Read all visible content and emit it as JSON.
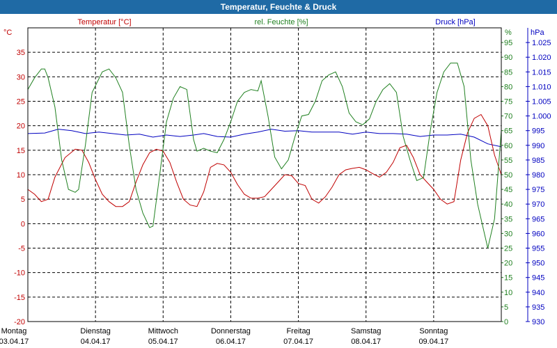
{
  "window": {
    "title": "Temperatur, Feuchte & Druck"
  },
  "colors": {
    "temperature": "#c00000",
    "humidity": "#208020",
    "pressure": "#0000c0",
    "grid": "#000000",
    "titlebar": "#1f6aa5"
  },
  "chart_data": {
    "type": "line",
    "title": "Temperatur, Feuchte & Druck",
    "grid": true,
    "x_labels": [
      {
        "day": "Montag",
        "date": "03.04.17"
      },
      {
        "day": "Dienstag",
        "date": "04.04.17"
      },
      {
        "day": "Mittwoch",
        "date": "05.04.17"
      },
      {
        "day": "Donnerstag",
        "date": "06.04.17"
      },
      {
        "day": "Freitag",
        "date": "07.04.17"
      },
      {
        "day": "Samstag",
        "date": "08.04.17"
      },
      {
        "day": "Sonntag",
        "date": "09.04.17"
      }
    ],
    "xlim": [
      0,
      7
    ],
    "axes": {
      "temperature": {
        "label": "Temperatur [°C]",
        "unit": "°C",
        "ylim": [
          -20,
          40
        ],
        "ticks": [
          "-20",
          "-15",
          "-10",
          "-5",
          "0",
          "5",
          "10",
          "15",
          "20",
          "25",
          "30",
          "35"
        ]
      },
      "humidity": {
        "label": "rel. Feuchte [%]",
        "unit": "%",
        "ylim": [
          0,
          100
        ],
        "ticks": [
          "0",
          "5",
          "10",
          "15",
          "20",
          "25",
          "30",
          "35",
          "40",
          "45",
          "50",
          "55",
          "60",
          "65",
          "70",
          "75",
          "80",
          "85",
          "90",
          "95"
        ]
      },
      "pressure": {
        "label": "Druck [hPa]",
        "unit": "hPa",
        "ylim": [
          930,
          1030
        ],
        "ticks": [
          "930",
          "935",
          "940",
          "945",
          "950",
          "955",
          "960",
          "965",
          "970",
          "975",
          "980",
          "985",
          "990",
          "995",
          "1.000",
          "1.005",
          "1.010",
          "1.015",
          "1.020",
          "1.025"
        ]
      }
    },
    "series": [
      {
        "name": "Temperatur [°C]",
        "axis": "temperature",
        "points": [
          [
            0.0,
            7.0
          ],
          [
            0.1,
            6.0
          ],
          [
            0.2,
            4.5
          ],
          [
            0.3,
            5.0
          ],
          [
            0.4,
            9.5
          ],
          [
            0.55,
            13.5
          ],
          [
            0.7,
            15.2
          ],
          [
            0.8,
            15.0
          ],
          [
            0.9,
            12.5
          ],
          [
            1.0,
            9.0
          ],
          [
            1.1,
            6.0
          ],
          [
            1.2,
            4.5
          ],
          [
            1.3,
            3.5
          ],
          [
            1.4,
            3.5
          ],
          [
            1.5,
            4.5
          ],
          [
            1.6,
            8.5
          ],
          [
            1.7,
            12.0
          ],
          [
            1.8,
            14.5
          ],
          [
            1.9,
            15.2
          ],
          [
            2.0,
            14.8
          ],
          [
            2.1,
            12.5
          ],
          [
            2.2,
            8.5
          ],
          [
            2.3,
            5.0
          ],
          [
            2.4,
            3.8
          ],
          [
            2.5,
            3.5
          ],
          [
            2.6,
            6.5
          ],
          [
            2.7,
            11.5
          ],
          [
            2.8,
            12.3
          ],
          [
            2.9,
            12.0
          ],
          [
            3.0,
            10.5
          ],
          [
            3.1,
            8.0
          ],
          [
            3.2,
            6.0
          ],
          [
            3.3,
            5.2
          ],
          [
            3.4,
            5.2
          ],
          [
            3.5,
            5.5
          ],
          [
            3.6,
            7.0
          ],
          [
            3.7,
            8.5
          ],
          [
            3.8,
            10.0
          ],
          [
            3.9,
            9.8
          ],
          [
            4.0,
            8.2
          ],
          [
            4.1,
            7.8
          ],
          [
            4.2,
            5.0
          ],
          [
            4.3,
            4.2
          ],
          [
            4.4,
            5.5
          ],
          [
            4.5,
            7.5
          ],
          [
            4.6,
            10.0
          ],
          [
            4.7,
            11.0
          ],
          [
            4.8,
            11.3
          ],
          [
            4.9,
            11.5
          ],
          [
            5.0,
            11.0
          ],
          [
            5.1,
            10.2
          ],
          [
            5.2,
            9.5
          ],
          [
            5.3,
            10.5
          ],
          [
            5.4,
            12.5
          ],
          [
            5.5,
            15.5
          ],
          [
            5.6,
            16.0
          ],
          [
            5.7,
            13.5
          ],
          [
            5.8,
            10.0
          ],
          [
            5.9,
            8.5
          ],
          [
            6.0,
            7.0
          ],
          [
            6.1,
            5.0
          ],
          [
            6.2,
            4.0
          ],
          [
            6.3,
            4.5
          ],
          [
            6.4,
            13.0
          ],
          [
            6.5,
            18.5
          ],
          [
            6.6,
            21.5
          ],
          [
            6.7,
            22.3
          ],
          [
            6.8,
            20.0
          ],
          [
            6.9,
            14.0
          ],
          [
            7.0,
            10.0
          ]
        ]
      },
      {
        "name": "rel. Feuchte [%]",
        "axis": "humidity",
        "points": [
          [
            0.0,
            79.0
          ],
          [
            0.1,
            83.0
          ],
          [
            0.2,
            86.0
          ],
          [
            0.25,
            86.0
          ],
          [
            0.3,
            83.0
          ],
          [
            0.4,
            73.0
          ],
          [
            0.5,
            55.0
          ],
          [
            0.6,
            45.0
          ],
          [
            0.7,
            44.0
          ],
          [
            0.75,
            45.0
          ],
          [
            0.85,
            60.0
          ],
          [
            0.95,
            78.0
          ],
          [
            1.1,
            85.0
          ],
          [
            1.2,
            86.0
          ],
          [
            1.3,
            83.0
          ],
          [
            1.4,
            78.0
          ],
          [
            1.5,
            60.0
          ],
          [
            1.6,
            45.0
          ],
          [
            1.7,
            37.0
          ],
          [
            1.8,
            32.0
          ],
          [
            1.85,
            32.5
          ],
          [
            1.95,
            50.0
          ],
          [
            2.05,
            68.0
          ],
          [
            2.15,
            76.0
          ],
          [
            2.25,
            80.0
          ],
          [
            2.35,
            79.0
          ],
          [
            2.45,
            62.0
          ],
          [
            2.5,
            58.0
          ],
          [
            2.6,
            59.0
          ],
          [
            2.7,
            58.0
          ],
          [
            2.8,
            57.5
          ],
          [
            2.9,
            62.0
          ],
          [
            3.0,
            68.0
          ],
          [
            3.1,
            75.0
          ],
          [
            3.2,
            78.0
          ],
          [
            3.3,
            79.0
          ],
          [
            3.4,
            78.5
          ],
          [
            3.45,
            82.0
          ],
          [
            3.55,
            70.0
          ],
          [
            3.65,
            56.0
          ],
          [
            3.75,
            52.0
          ],
          [
            3.85,
            55.0
          ],
          [
            3.95,
            63.0
          ],
          [
            4.05,
            70.0
          ],
          [
            4.15,
            70.5
          ],
          [
            4.25,
            75.0
          ],
          [
            4.35,
            82.0
          ],
          [
            4.45,
            84.0
          ],
          [
            4.55,
            85.0
          ],
          [
            4.65,
            80.0
          ],
          [
            4.75,
            71.0
          ],
          [
            4.85,
            68.0
          ],
          [
            4.95,
            67.0
          ],
          [
            5.05,
            69.0
          ],
          [
            5.15,
            75.0
          ],
          [
            5.25,
            79.0
          ],
          [
            5.35,
            81.0
          ],
          [
            5.45,
            78.0
          ],
          [
            5.55,
            63.0
          ],
          [
            5.65,
            55.0
          ],
          [
            5.75,
            48.0
          ],
          [
            5.85,
            49.0
          ],
          [
            5.95,
            65.0
          ],
          [
            6.05,
            78.0
          ],
          [
            6.15,
            85.0
          ],
          [
            6.25,
            88.0
          ],
          [
            6.35,
            88.0
          ],
          [
            6.45,
            80.0
          ],
          [
            6.55,
            55.0
          ],
          [
            6.65,
            40.0
          ],
          [
            6.75,
            30.0
          ],
          [
            6.8,
            25.0
          ],
          [
            6.9,
            35.0
          ],
          [
            7.0,
            65.0
          ]
        ]
      },
      {
        "name": "Druck [hPa]",
        "axis": "pressure",
        "points": [
          [
            0.0,
            994.0
          ],
          [
            0.25,
            994.2
          ],
          [
            0.45,
            995.5
          ],
          [
            0.65,
            995.0
          ],
          [
            0.85,
            994.0
          ],
          [
            1.05,
            994.5
          ],
          [
            1.25,
            994.0
          ],
          [
            1.45,
            993.5
          ],
          [
            1.65,
            993.8
          ],
          [
            1.85,
            992.8
          ],
          [
            2.05,
            993.5
          ],
          [
            2.25,
            993.0
          ],
          [
            2.45,
            993.5
          ],
          [
            2.6,
            994.0
          ],
          [
            2.8,
            993.0
          ],
          [
            3.0,
            992.8
          ],
          [
            3.2,
            993.8
          ],
          [
            3.4,
            994.5
          ],
          [
            3.6,
            995.5
          ],
          [
            3.8,
            994.8
          ],
          [
            4.0,
            995.0
          ],
          [
            4.2,
            994.5
          ],
          [
            4.4,
            994.5
          ],
          [
            4.6,
            994.5
          ],
          [
            4.8,
            993.8
          ],
          [
            5.0,
            994.5
          ],
          [
            5.2,
            994.0
          ],
          [
            5.4,
            994.0
          ],
          [
            5.6,
            993.8
          ],
          [
            5.8,
            993.0
          ],
          [
            6.0,
            993.5
          ],
          [
            6.2,
            993.5
          ],
          [
            6.4,
            993.8
          ],
          [
            6.6,
            992.8
          ],
          [
            6.8,
            990.5
          ],
          [
            7.0,
            989.5
          ]
        ]
      }
    ]
  }
}
